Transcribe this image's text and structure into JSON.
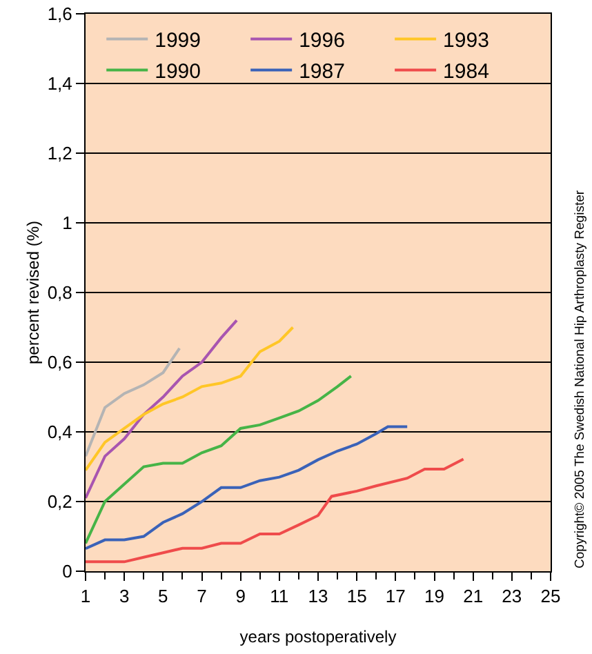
{
  "chart_data": {
    "type": "line",
    "xlabel": "years postoperatively",
    "ylabel": "percent revised (%)",
    "annotations": [
      "Copyright© 2005 The Swedish National Hip Arthroplasty Register"
    ],
    "xlim": [
      1,
      25
    ],
    "xticks": [
      1,
      3,
      5,
      7,
      9,
      11,
      13,
      15,
      17,
      19,
      21,
      23,
      25
    ],
    "ylim": [
      0,
      1.6
    ],
    "yticks": [
      0,
      {
        "value": 0.2,
        "label": "0,2"
      },
      {
        "value": 0.4,
        "label": "0,4"
      },
      {
        "value": 0.6,
        "label": "0,6"
      },
      {
        "value": 0.8,
        "label": "0,8"
      },
      1,
      {
        "value": 1.2,
        "label": "1,2"
      },
      {
        "value": 1.4,
        "label": "1,4"
      },
      {
        "value": 1.6,
        "label": "1,6"
      }
    ],
    "grid": "y",
    "legend": "top",
    "marker": "none",
    "line_style": "solid",
    "series": [
      {
        "name": "1999",
        "color": "#b4b4b4",
        "x": [
          1,
          2,
          3,
          4,
          5,
          5.85
        ],
        "values": [
          0.33,
          0.47,
          0.51,
          0.535,
          0.57,
          0.64
        ]
      },
      {
        "name": "1996",
        "color": "#a855b0",
        "x": [
          1,
          2,
          3,
          4,
          5,
          6,
          7,
          8,
          8.8
        ],
        "values": [
          0.21,
          0.33,
          0.38,
          0.45,
          0.5,
          0.56,
          0.6,
          0.67,
          0.72
        ]
      },
      {
        "name": "1993",
        "color": "#ffc627",
        "x": [
          1,
          2,
          3,
          4,
          5,
          6,
          7,
          8,
          9,
          10,
          11,
          11.7
        ],
        "values": [
          0.29,
          0.37,
          0.41,
          0.45,
          0.48,
          0.5,
          0.53,
          0.54,
          0.56,
          0.63,
          0.66,
          0.7
        ]
      },
      {
        "name": "1990",
        "color": "#46b447",
        "x": [
          1,
          2,
          3,
          4,
          5,
          6,
          7,
          8,
          9,
          10,
          11,
          12,
          13,
          14,
          14.7
        ],
        "values": [
          0.08,
          0.2,
          0.25,
          0.3,
          0.31,
          0.31,
          0.34,
          0.36,
          0.41,
          0.42,
          0.44,
          0.46,
          0.49,
          0.53,
          0.56
        ]
      },
      {
        "name": "1987",
        "color": "#3a62b8",
        "x": [
          1,
          2,
          3,
          4,
          5,
          6,
          7,
          8,
          9,
          10,
          11,
          12,
          13,
          14,
          15,
          16,
          16.6,
          17.6
        ],
        "values": [
          0.065,
          0.09,
          0.09,
          0.1,
          0.14,
          0.165,
          0.2,
          0.24,
          0.24,
          0.26,
          0.27,
          0.29,
          0.32,
          0.345,
          0.365,
          0.395,
          0.415,
          0.415
        ]
      },
      {
        "name": "1984",
        "color": "#ef4b4b",
        "x": [
          1,
          2,
          3,
          4,
          5,
          6,
          7,
          8,
          9,
          10,
          11,
          12,
          13,
          13.7,
          15,
          16,
          17.6,
          18.5,
          19.5,
          20.5
        ],
        "values": [
          0.027,
          0.027,
          0.027,
          0.04,
          0.053,
          0.066,
          0.066,
          0.08,
          0.08,
          0.107,
          0.107,
          0.133,
          0.16,
          0.215,
          0.23,
          0.245,
          0.267,
          0.293,
          0.293,
          0.322
        ]
      }
    ]
  }
}
